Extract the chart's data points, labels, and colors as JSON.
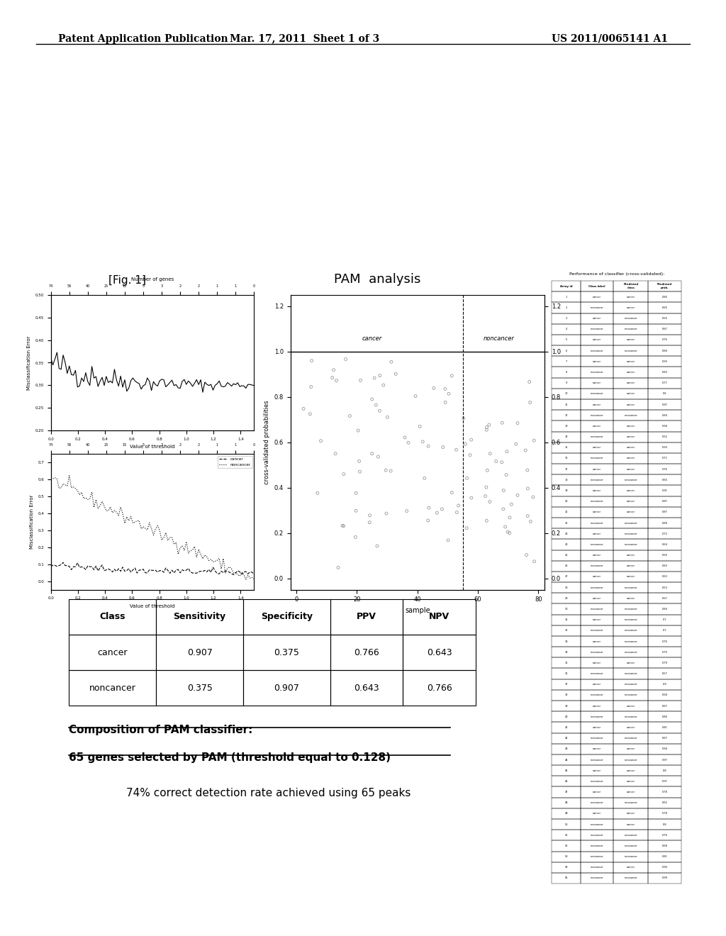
{
  "header_left": "Patent Application Publication",
  "header_center": "Mar. 17, 2011  Sheet 1 of 3",
  "header_right": "US 2011/0065141 A1",
  "fig_label": "[Fig. 1]",
  "pam_title": "PAM  analysis",
  "table_headers": [
    "Class",
    "Sensitivity",
    "Specificity",
    "PPV",
    "NPV"
  ],
  "table_rows": [
    [
      "cancer",
      "0.907",
      "0.375",
      "0.766",
      "0.643"
    ],
    [
      "noncancer",
      "0.375",
      "0.907",
      "0.643",
      "0.766"
    ]
  ],
  "composition_line1": "Composition of PAM classifier:",
  "composition_line2": "65 genes selected by PAM (threshold equal to 0.128)",
  "detection_text": "74% correct detection rate achieved using 65 peaks",
  "background_color": "#ffffff",
  "text_color": "#000000"
}
